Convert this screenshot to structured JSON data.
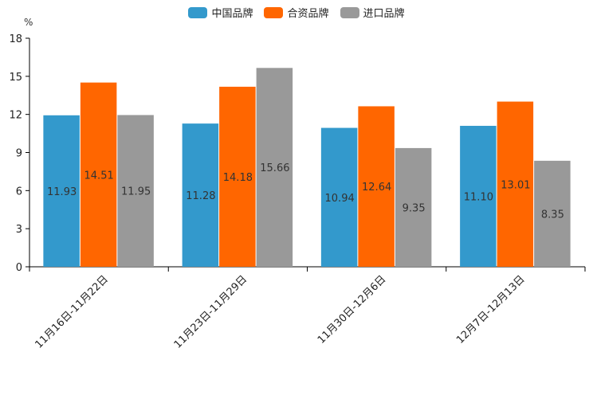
{
  "chart_data": {
    "type": "bar",
    "title": "",
    "unit": "%",
    "xlabel": "",
    "ylabel": "%",
    "ylim": [
      0,
      18
    ],
    "yticks": [
      0,
      3,
      6,
      9,
      12,
      15,
      18
    ],
    "categories": [
      "11月16日-11月22日",
      "11月23日-11月29日",
      "11月30日-12月6日",
      "12月7日-12月13日"
    ],
    "series": [
      {
        "name": "中国品牌",
        "color": "#3399CC",
        "values": [
          11.93,
          11.28,
          10.94,
          11.1
        ],
        "labels": [
          "11.93",
          "11.28",
          "10.94",
          "11.10"
        ]
      },
      {
        "name": "合资品牌",
        "color": "#FF6600",
        "values": [
          14.51,
          14.18,
          12.64,
          13.01
        ],
        "labels": [
          "14.51",
          "14.18",
          "12.64",
          "13.01"
        ]
      },
      {
        "name": "进口品牌",
        "color": "#999999",
        "values": [
          11.95,
          15.66,
          9.35,
          8.35
        ],
        "labels": [
          "11.95",
          "15.66",
          "9.35",
          "8.35"
        ]
      }
    ],
    "legend_position": "top-center"
  }
}
